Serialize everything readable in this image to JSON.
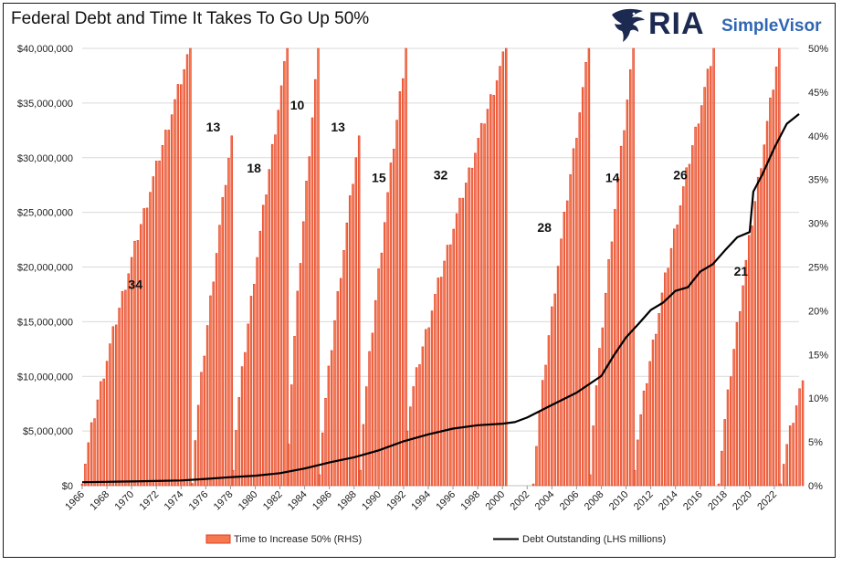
{
  "title": "Federal Debt and Time It Takes To Go Up 50%",
  "logo": {
    "ria": "RIA",
    "simplevisor": "SimpleVisor",
    "icon": "eagle-icon"
  },
  "colors": {
    "bar_fill": "#f4794f",
    "bar_stroke": "#e33a1f",
    "line": "#000000",
    "grid": "#d9d9d9"
  },
  "chart_data": {
    "type": "bar",
    "title": "Federal Debt and Time It Takes To Go Up 50%",
    "x_range": [
      1966,
      2024
    ],
    "x_ticks": [
      "1966",
      "1968",
      "1970",
      "1972",
      "1974",
      "1976",
      "1978",
      "1980",
      "1982",
      "1984",
      "1986",
      "1988",
      "1990",
      "1992",
      "1994",
      "1996",
      "1998",
      "2000",
      "2002",
      "2004",
      "2006",
      "2008",
      "2010",
      "2012",
      "2014",
      "2016",
      "2018",
      "2020",
      "2022"
    ],
    "y_left": {
      "range": [
        0,
        40000000
      ],
      "ticks": [
        "$0",
        "$5,000,000",
        "$10,000,000",
        "$15,000,000",
        "$20,000,000",
        "$25,000,000",
        "$30,000,000",
        "$35,000,000",
        "$40,000,000"
      ]
    },
    "y_right": {
      "range": [
        0,
        50
      ],
      "ticks": [
        "0%",
        "5%",
        "10%",
        "15%",
        "20%",
        "25%",
        "30%",
        "35%",
        "40%",
        "45%",
        "50%"
      ]
    },
    "grid": true,
    "legend_position": "bottom",
    "series": [
      {
        "name": "Time to Increase 50% (RHS)",
        "type": "bar",
        "axis": "right",
        "cycles": [
          {
            "start": 1966.0,
            "end": 1974.75,
            "from": 0.3,
            "to": 50
          },
          {
            "start": 1974.9,
            "end": 1978.1,
            "from": 1.0,
            "to": 40
          },
          {
            "start": 1978.2,
            "end": 1982.6,
            "from": 2.5,
            "to": 50
          },
          {
            "start": 1982.7,
            "end": 1985.1,
            "from": 5.5,
            "to": 50
          },
          {
            "start": 1985.2,
            "end": 1988.4,
            "from": 2.0,
            "to": 40
          },
          {
            "start": 1988.5,
            "end": 1992.2,
            "from": 2.5,
            "to": 50
          },
          {
            "start": 1992.3,
            "end": 2000.3,
            "from": 7.0,
            "to": 50
          },
          {
            "start": 2002.5,
            "end": 2007.0,
            "from": 0.5,
            "to": 50
          },
          {
            "start": 2007.1,
            "end": 2010.6,
            "from": 2.0,
            "to": 50
          },
          {
            "start": 2010.7,
            "end": 2017.1,
            "from": 2.5,
            "to": 50
          },
          {
            "start": 2017.5,
            "end": 2022.4,
            "from": 0.3,
            "to": 50
          },
          {
            "start": 2022.5,
            "end": 2024.3,
            "from": 0.5,
            "to": 12
          }
        ]
      },
      {
        "name": "Debt Outstanding (LHS millions)",
        "type": "line",
        "axis": "left",
        "x": [
          1966,
          1968,
          1970,
          1972,
          1974,
          1976,
          1978,
          1980,
          1982,
          1984,
          1986,
          1988,
          1990,
          1992,
          1994,
          1996,
          1998,
          2000,
          2001,
          2002,
          2004,
          2006,
          2008,
          2009,
          2010,
          2011,
          2012,
          2013,
          2014,
          2015,
          2016,
          2017,
          2018,
          2019,
          2020,
          2020.3,
          2021,
          2022,
          2023,
          2024
        ],
        "y": [
          320000,
          350000,
          380000,
          430000,
          480000,
          620000,
          780000,
          910000,
          1140000,
          1570000,
          2120000,
          2600000,
          3230000,
          4060000,
          4690000,
          5220000,
          5530000,
          5670000,
          5810000,
          6230000,
          7380000,
          8510000,
          10030000,
          11900000,
          13560000,
          14790000,
          16070000,
          16740000,
          17820000,
          18150000,
          19570000,
          20240000,
          21520000,
          22720000,
          23200000,
          26900000,
          28400000,
          30900000,
          33100000,
          34000000
        ]
      }
    ],
    "annotations": [
      {
        "text": "34",
        "x": 1970.3,
        "y_pct": 22.5
      },
      {
        "text": "13",
        "x": 1976.6,
        "y_pct": 40.5
      },
      {
        "text": "18",
        "x": 1979.9,
        "y_pct": 35.8
      },
      {
        "text": "10",
        "x": 1983.4,
        "y_pct": 43.0
      },
      {
        "text": "13",
        "x": 1986.7,
        "y_pct": 40.5
      },
      {
        "text": "15",
        "x": 1990.0,
        "y_pct": 34.7
      },
      {
        "text": "32",
        "x": 1995.0,
        "y_pct": 35.0
      },
      {
        "text": "28",
        "x": 2003.4,
        "y_pct": 29.0
      },
      {
        "text": "14",
        "x": 2008.9,
        "y_pct": 34.7
      },
      {
        "text": "26",
        "x": 2014.4,
        "y_pct": 35.0
      },
      {
        "text": "21",
        "x": 2019.3,
        "y_pct": 24.0
      }
    ]
  }
}
